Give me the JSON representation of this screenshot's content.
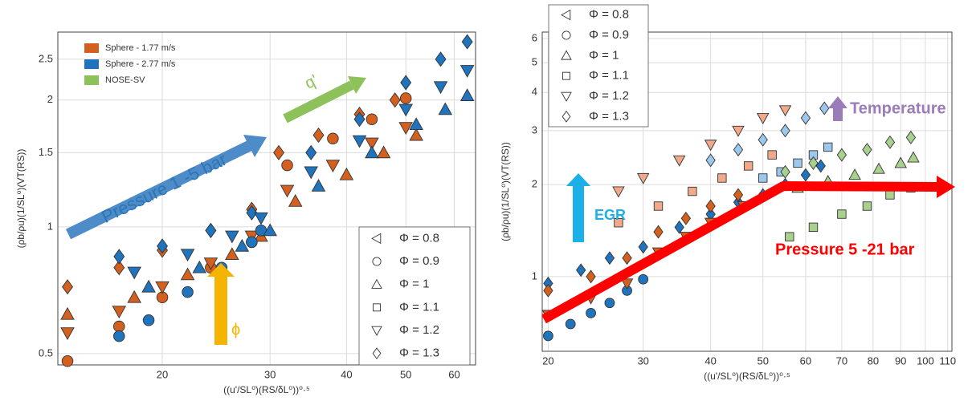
{
  "chart_data": [
    {
      "type": "scatter",
      "xscale": "log",
      "yscale": "log",
      "grid": true,
      "x_label": "((u'/SL⁰)(RS/δL⁰))⁰·⁵",
      "y_label": "(ρb/ρu)(1/SL⁰)(VT(RS))",
      "xlim": [
        13.5,
        65
      ],
      "ylim": [
        0.47,
        2.9
      ],
      "xticks": [
        20,
        30,
        40,
        50,
        60
      ],
      "yticks": [
        0.5,
        1,
        1.5,
        2,
        2.5
      ],
      "legend": [
        {
          "name": "Sphere - 1.77 m/s",
          "color": "#d4601f"
        },
        {
          "name": "Sphere - 2.77 m/s",
          "color": "#1f74bd"
        },
        {
          "name": "NOSE-SV",
          "color": "#8dc25a"
        }
      ],
      "marker_legend": [
        {
          "label": "Φ = 0.8",
          "marker": "triangle-left"
        },
        {
          "label": "Φ = 0.9",
          "marker": "circle"
        },
        {
          "label": "Φ = 1",
          "marker": "triangle-up"
        },
        {
          "label": "Φ = 1.1",
          "marker": "square"
        },
        {
          "label": "Φ = 1.2",
          "marker": "triangle-down"
        },
        {
          "label": "Φ = 1.3",
          "marker": "diamond"
        }
      ],
      "annotations": [
        "Pressure 1 -5 bar",
        "q'",
        "ϕ"
      ],
      "series": [
        {
          "color": "#d4601f",
          "marker": "diamond",
          "x": [
            14,
            17,
            20,
            24,
            28,
            31,
            36,
            42,
            48
          ],
          "y": [
            0.72,
            0.8,
            0.88,
            0.98,
            1.1,
            1.5,
            1.65,
            1.85,
            2.0
          ]
        },
        {
          "color": "#d4601f",
          "marker": "circle",
          "x": [
            14,
            17,
            20,
            24,
            28,
            32,
            38,
            44,
            50
          ],
          "y": [
            0.48,
            0.58,
            0.68,
            0.8,
            0.92,
            1.4,
            1.62,
            1.8,
            2.02
          ]
        },
        {
          "color": "#d4601f",
          "marker": "triangle-down",
          "x": [
            14,
            17,
            20,
            24,
            28,
            32,
            38,
            44,
            50
          ],
          "y": [
            0.56,
            0.63,
            0.72,
            0.82,
            0.95,
            1.22,
            1.4,
            1.58,
            1.72
          ]
        },
        {
          "color": "#d4601f",
          "marker": "triangle-up",
          "x": [
            14,
            18,
            22,
            26,
            29,
            33,
            40,
            46,
            52
          ],
          "y": [
            0.62,
            0.68,
            0.77,
            0.86,
            0.95,
            1.15,
            1.33,
            1.5,
            1.65
          ]
        },
        {
          "color": "#1f74bd",
          "marker": "diamond",
          "x": [
            17,
            20,
            24,
            28,
            35,
            42,
            50,
            57,
            63
          ],
          "y": [
            0.85,
            0.9,
            0.98,
            1.08,
            1.5,
            1.8,
            2.2,
            2.5,
            2.75
          ]
        },
        {
          "color": "#1f74bd",
          "marker": "circle",
          "x": [
            17,
            19,
            22,
            25,
            28,
            29
          ],
          "y": [
            0.55,
            0.6,
            0.7,
            0.8,
            0.92,
            0.98
          ]
        },
        {
          "color": "#1f74bd",
          "marker": "triangle-down",
          "x": [
            18,
            22,
            26,
            29,
            35,
            42,
            50,
            57,
            63
          ],
          "y": [
            0.78,
            0.86,
            0.95,
            1.05,
            1.35,
            1.6,
            1.9,
            2.15,
            2.35
          ]
        },
        {
          "color": "#1f74bd",
          "marker": "triangle-up",
          "x": [
            19,
            23,
            27,
            30,
            36,
            44,
            52,
            58,
            63
          ],
          "y": [
            0.72,
            0.8,
            0.9,
            0.98,
            1.25,
            1.5,
            1.75,
            1.9,
            2.05
          ]
        }
      ]
    },
    {
      "type": "scatter",
      "xscale": "log",
      "yscale": "log",
      "grid": true,
      "x_label": "((u'/SL⁰)(RS/δL⁰))⁰·⁵",
      "y_label": "(ρb/ρu)(1/SL⁰)(VT(RS))",
      "xlim": [
        19.5,
        112
      ],
      "ylim": [
        0.57,
        6.3
      ],
      "xticks": [
        20,
        30,
        40,
        50,
        60,
        70,
        80,
        90,
        100,
        110
      ],
      "yticks": [
        1,
        2,
        3,
        4,
        5,
        6
      ],
      "marker_legend": [
        {
          "label": "Φ = 0.8",
          "marker": "triangle-left"
        },
        {
          "label": "Φ = 0.9",
          "marker": "circle"
        },
        {
          "label": "Φ = 1",
          "marker": "triangle-up"
        },
        {
          "label": "Φ = 1.1",
          "marker": "square"
        },
        {
          "label": "Φ = 1.2",
          "marker": "triangle-down"
        },
        {
          "label": "Φ = 1.3",
          "marker": "diamond"
        }
      ],
      "annotations": [
        "Temperature",
        "EGR",
        "Pressure 5 -21 bar"
      ],
      "series": [
        {
          "color": "#1f74bd",
          "marker": "circle",
          "x": [
            20,
            22,
            24,
            26,
            28,
            30
          ],
          "y": [
            0.64,
            0.7,
            0.76,
            0.82,
            0.9,
            0.98
          ]
        },
        {
          "color": "#1f74bd",
          "marker": "diamond",
          "x": [
            20,
            23,
            26,
            30,
            35,
            40,
            45,
            50,
            55,
            60,
            64
          ],
          "y": [
            0.95,
            1.05,
            1.15,
            1.25,
            1.45,
            1.6,
            1.75,
            1.85,
            2.0,
            2.15,
            2.3
          ]
        },
        {
          "color": "#d4601f",
          "marker": "diamond",
          "x": [
            20,
            24,
            28,
            32,
            36,
            40,
            45
          ],
          "y": [
            0.9,
            1.0,
            1.15,
            1.4,
            1.55,
            1.7,
            1.85
          ]
        },
        {
          "color": "#d4601f",
          "marker": "triangle-down",
          "x": [
            20,
            24,
            28,
            32,
            36,
            40,
            46
          ],
          "y": [
            0.75,
            0.85,
            0.95,
            1.2,
            1.35,
            1.5,
            1.7
          ]
        },
        {
          "color": "#f2a98a",
          "marker": "triangle-down",
          "x": [
            27,
            30,
            35,
            40,
            45,
            50,
            55
          ],
          "y": [
            1.9,
            2.1,
            2.4,
            2.7,
            3.0,
            3.3,
            3.5
          ]
        },
        {
          "color": "#f2a98a",
          "marker": "square",
          "x": [
            27,
            32,
            37,
            42,
            47,
            52
          ],
          "y": [
            1.5,
            1.7,
            1.9,
            2.1,
            2.3,
            2.5
          ]
        },
        {
          "color": "#9cc8ec",
          "marker": "diamond",
          "x": [
            40,
            45,
            50,
            55,
            60,
            65
          ],
          "y": [
            2.4,
            2.6,
            2.8,
            3.0,
            3.3,
            3.55
          ]
        },
        {
          "color": "#9cc8ec",
          "marker": "square",
          "x": [
            50,
            54,
            58,
            62,
            66
          ],
          "y": [
            2.1,
            2.2,
            2.35,
            2.5,
            2.65
          ]
        },
        {
          "color": "#a9d18e",
          "marker": "diamond",
          "x": [
            55,
            62,
            70,
            78,
            86,
            94
          ],
          "y": [
            2.2,
            2.35,
            2.5,
            2.6,
            2.75,
            2.85
          ]
        },
        {
          "color": "#a9d18e",
          "marker": "triangle-up",
          "x": [
            58,
            66,
            74,
            82,
            90,
            95
          ],
          "y": [
            1.95,
            2.05,
            2.15,
            2.25,
            2.35,
            2.45
          ]
        },
        {
          "color": "#a9d18e",
          "marker": "square",
          "x": [
            56,
            62,
            70,
            78,
            86,
            94
          ],
          "y": [
            1.35,
            1.45,
            1.6,
            1.7,
            1.85,
            1.95
          ]
        }
      ]
    }
  ]
}
